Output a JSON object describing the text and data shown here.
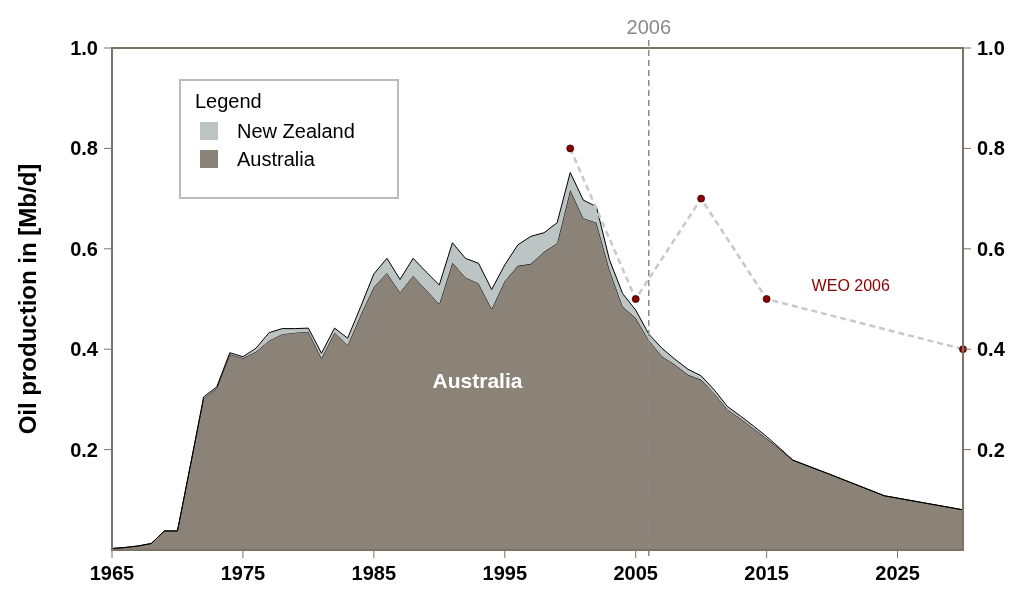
{
  "chart_data": {
    "type": "area",
    "stacked": true,
    "ylabel": "Oil production in [Mb/d]",
    "legend_title": "Legend",
    "legend": "top left",
    "grid": false,
    "xlim": [
      1965,
      2030
    ],
    "xticks": [
      1965,
      1975,
      1985,
      1995,
      2005,
      2015,
      2025
    ],
    "ylim": [
      0,
      1
    ],
    "yticks": [
      0.2,
      0.4,
      0.6,
      {
        "value": 0.8,
        "label": "0.8"
      },
      {
        "value": 1,
        "label": "1.0"
      }
    ],
    "y2lim": [
      0,
      1
    ],
    "y2ticks": [
      0.2,
      0.4,
      0.6,
      {
        "value": 0.8,
        "label": "0.8"
      },
      {
        "value": 1,
        "label": "1.0"
      }
    ],
    "series": [
      {
        "name": "Australia",
        "color": "#8c8378",
        "x": [
          1965,
          1966,
          1967,
          1968,
          1969,
          1970,
          1971,
          1972,
          1973,
          1974,
          1975,
          1976,
          1977,
          1978,
          1979,
          1980,
          1981,
          1982,
          1983,
          1984,
          1985,
          1986,
          1987,
          1988,
          1989,
          1990,
          1991,
          1992,
          1993,
          1994,
          1995,
          1996,
          1997,
          1998,
          1999,
          2000,
          2001,
          2002,
          2003,
          2004,
          2005,
          2006,
          2007,
          2008,
          2009,
          2010,
          2011,
          2012,
          2013,
          2014,
          2015,
          2016,
          2017,
          2020,
          2024,
          2030
        ],
        "values": [
          0.003,
          0.005,
          0.008,
          0.013,
          0.038,
          0.038,
          0.17,
          0.302,
          0.322,
          0.39,
          0.382,
          0.395,
          0.417,
          0.43,
          0.433,
          0.435,
          0.382,
          0.433,
          0.408,
          0.468,
          0.524,
          0.552,
          0.513,
          0.546,
          0.518,
          0.49,
          0.572,
          0.543,
          0.531,
          0.48,
          0.536,
          0.566,
          0.57,
          0.594,
          0.611,
          0.717,
          0.661,
          0.652,
          0.558,
          0.485,
          0.462,
          0.418,
          0.386,
          0.369,
          0.349,
          0.339,
          0.312,
          0.28,
          0.262,
          0.242,
          0.222,
          0.201,
          0.179,
          0.149,
          0.108,
          0.08
        ]
      },
      {
        "name": "New Zealand",
        "color": "#bcc4c4",
        "x": [
          1965,
          1966,
          1967,
          1968,
          1969,
          1970,
          1971,
          1972,
          1973,
          1974,
          1975,
          1976,
          1977,
          1978,
          1979,
          1980,
          1981,
          1982,
          1983,
          1984,
          1985,
          1986,
          1987,
          1988,
          1989,
          1990,
          1991,
          1992,
          1993,
          1994,
          1995,
          1996,
          1997,
          1998,
          1999,
          2000,
          2001,
          2002,
          2003,
          2004,
          2005,
          2006,
          2007,
          2008,
          2009,
          2010,
          2011,
          2012,
          2013,
          2014,
          2015,
          2016,
          2017,
          2020,
          2024,
          2030
        ],
        "values": [
          0,
          0,
          0,
          0,
          0,
          0,
          0,
          0.003,
          0.003,
          0.003,
          0.003,
          0.007,
          0.016,
          0.011,
          0.008,
          0.007,
          0.01,
          0.009,
          0.014,
          0.017,
          0.026,
          0.029,
          0.026,
          0.035,
          0.036,
          0.038,
          0.04,
          0.038,
          0.04,
          0.039,
          0.032,
          0.042,
          0.055,
          0.038,
          0.041,
          0.035,
          0.036,
          0.032,
          0.02,
          0.026,
          0.016,
          0.012,
          0.016,
          0.011,
          0.011,
          0.008,
          0.007,
          0.006,
          0.005,
          0.005,
          0.004,
          0.002,
          0,
          0,
          0,
          0
        ]
      },
      {
        "name": "WEO 2006",
        "type": "line",
        "color": "#8b0000",
        "marker": "circle",
        "line_style": "dashed",
        "x": [
          2000,
          2005,
          2010,
          2015,
          2030
        ],
        "values": [
          0.8,
          0.5,
          0.7,
          0.5,
          0.4
        ]
      }
    ],
    "ref_lines": [
      {
        "axis": "x",
        "value": 2006,
        "label": "2006",
        "color": "#8a8a8a",
        "line_style": "dashed"
      }
    ],
    "annotations": [
      "Australia"
    ]
  }
}
